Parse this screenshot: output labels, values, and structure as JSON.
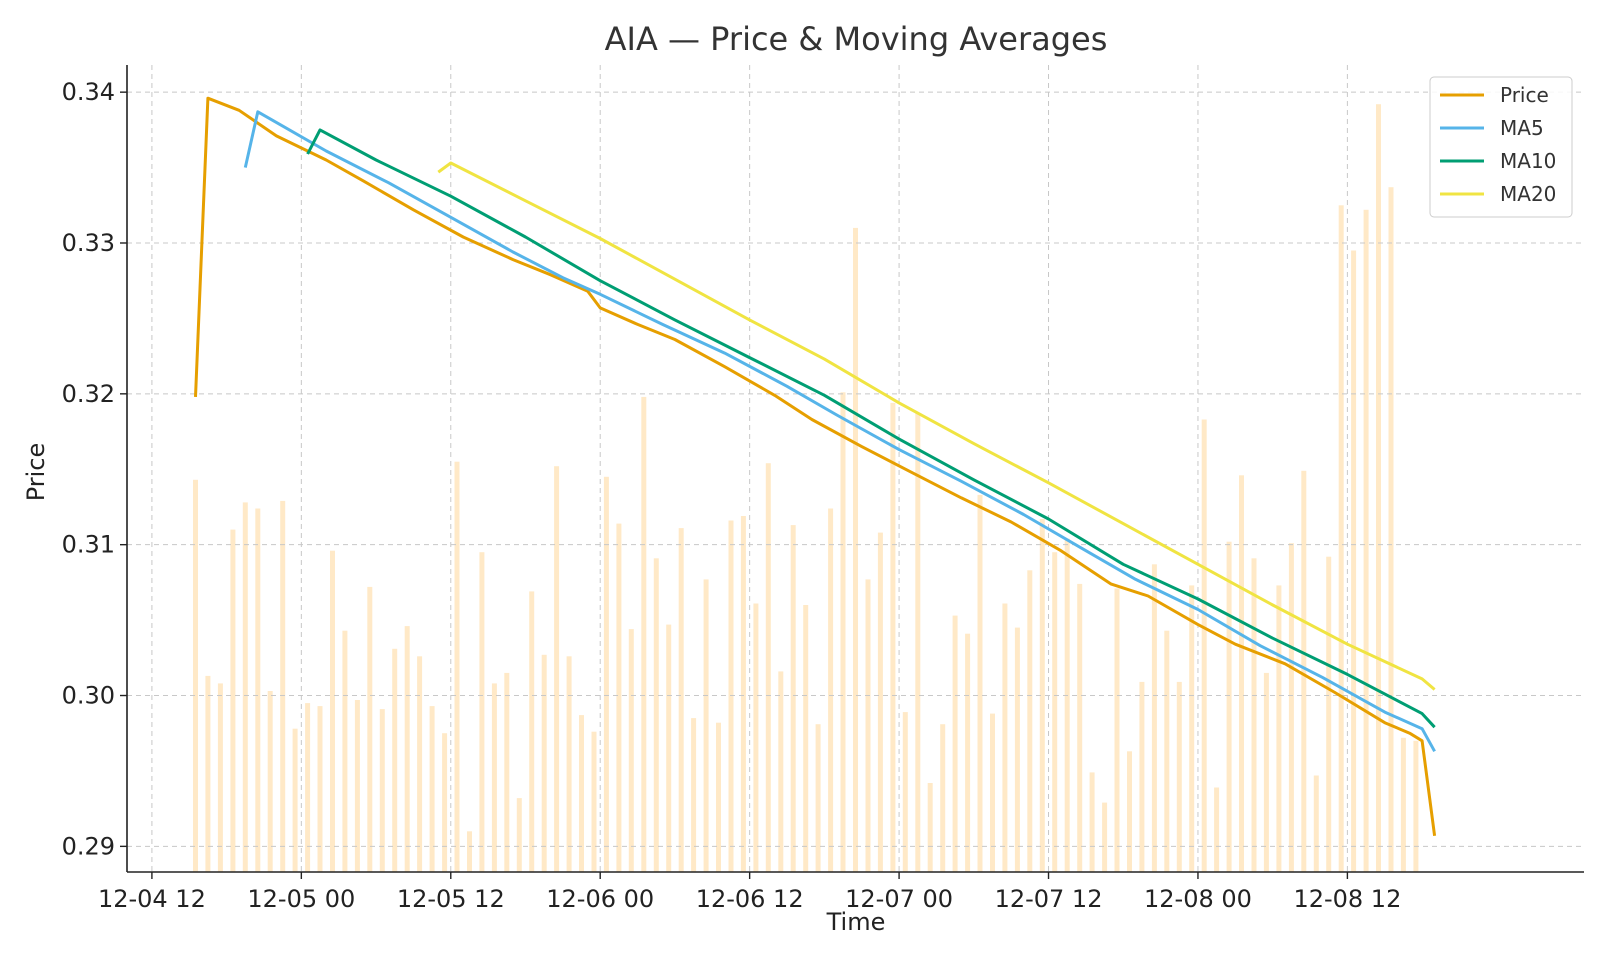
{
  "chart_data": {
    "type": "line",
    "title": "AIA — Price & Moving Averages",
    "xlabel": "Time",
    "ylabel": "Price",
    "ylim": [
      0.2883,
      0.3418
    ],
    "x_range": [
      "2024-12-04 10:00",
      "2024-12-09 07:00"
    ],
    "x_ticks": [
      {
        "t": "2024-12-04 12:00",
        "label": "12-04 12"
      },
      {
        "t": "2024-12-05 00:00",
        "label": "12-05 00"
      },
      {
        "t": "2024-12-05 12:00",
        "label": "12-05 12"
      },
      {
        "t": "2024-12-06 00:00",
        "label": "12-06 00"
      },
      {
        "t": "2024-12-06 12:00",
        "label": "12-06 12"
      },
      {
        "t": "2024-12-07 00:00",
        "label": "12-07 00"
      },
      {
        "t": "2024-12-07 12:00",
        "label": "12-07 12"
      },
      {
        "t": "2024-12-08 00:00",
        "label": "12-08 00"
      },
      {
        "t": "2024-12-08 12:00",
        "label": "12-08 12"
      }
    ],
    "y_ticks": [
      {
        "v": 0.29,
        "label": "0.29"
      },
      {
        "v": 0.3,
        "label": "0.30"
      },
      {
        "v": 0.31,
        "label": "0.31"
      },
      {
        "v": 0.32,
        "label": "0.32"
      },
      {
        "v": 0.33,
        "label": "0.33"
      },
      {
        "v": 0.34,
        "label": "0.34"
      }
    ],
    "grid": true,
    "legend_position": "top-right",
    "series": [
      {
        "name": "Price",
        "color": "#E69F00",
        "points": [
          [
            "2024-12-04 15:30",
            0.3198
          ],
          [
            "2024-12-04 16:30",
            0.3396
          ],
          [
            "2024-12-04 19:00",
            0.3388
          ],
          [
            "2024-12-04 22:00",
            0.3371
          ],
          [
            "2024-12-05 02:00",
            0.3355
          ],
          [
            "2024-12-05 05:00",
            0.3341
          ],
          [
            "2024-12-05 09:00",
            0.3322
          ],
          [
            "2024-12-05 13:00",
            0.3304
          ],
          [
            "2024-12-05 17:00",
            0.3289
          ],
          [
            "2024-12-05 20:00",
            0.3279
          ],
          [
            "2024-12-05 23:00",
            0.3268
          ],
          [
            "2024-12-06 00:00",
            0.3257
          ],
          [
            "2024-12-06 03:00",
            0.3246
          ],
          [
            "2024-12-06 06:00",
            0.3236
          ],
          [
            "2024-12-06 10:00",
            0.3218
          ],
          [
            "2024-12-06 14:00",
            0.3199
          ],
          [
            "2024-12-06 17:00",
            0.3183
          ],
          [
            "2024-12-06 21:00",
            0.3165
          ],
          [
            "2024-12-07 01:00",
            0.3148
          ],
          [
            "2024-12-07 05:00",
            0.3131
          ],
          [
            "2024-12-07 09:00",
            0.3115
          ],
          [
            "2024-12-07 13:00",
            0.3096
          ],
          [
            "2024-12-07 17:00",
            0.3074
          ],
          [
            "2024-12-07 20:00",
            0.3066
          ],
          [
            "2024-12-08 00:00",
            0.3047
          ],
          [
            "2024-12-08 03:00",
            0.3034
          ],
          [
            "2024-12-08 07:00",
            0.3021
          ],
          [
            "2024-12-08 11:00",
            0.3002
          ],
          [
            "2024-12-08 15:00",
            0.2982
          ],
          [
            "2024-12-08 17:00",
            0.2975
          ],
          [
            "2024-12-08 18:00",
            0.297
          ],
          [
            "2024-12-08 19:00",
            0.2907
          ]
        ]
      },
      {
        "name": "MA5",
        "color": "#56B4E9",
        "points": [
          [
            "2024-12-04 19:30",
            0.335
          ],
          [
            "2024-12-04 20:30",
            0.3387
          ],
          [
            "2024-12-05 02:00",
            0.3361
          ],
          [
            "2024-12-05 07:00",
            0.334
          ],
          [
            "2024-12-05 12:00",
            0.3317
          ],
          [
            "2024-12-05 17:00",
            0.3294
          ],
          [
            "2024-12-05 21:00",
            0.3277
          ],
          [
            "2024-12-06 00:00",
            0.3266
          ],
          [
            "2024-12-06 05:00",
            0.3246
          ],
          [
            "2024-12-06 10:00",
            0.3227
          ],
          [
            "2024-12-06 15:00",
            0.3205
          ],
          [
            "2024-12-06 19:00",
            0.3186
          ],
          [
            "2024-12-07 00:00",
            0.3163
          ],
          [
            "2024-12-07 05:00",
            0.3142
          ],
          [
            "2024-12-07 10:00",
            0.312
          ],
          [
            "2024-12-07 15:00",
            0.3096
          ],
          [
            "2024-12-07 19:00",
            0.3077
          ],
          [
            "2024-12-08 00:00",
            0.3057
          ],
          [
            "2024-12-08 05:00",
            0.3033
          ],
          [
            "2024-12-08 10:00",
            0.3012
          ],
          [
            "2024-12-08 15:00",
            0.2989
          ],
          [
            "2024-12-08 18:00",
            0.2978
          ],
          [
            "2024-12-08 19:00",
            0.2963
          ]
        ]
      },
      {
        "name": "MA10",
        "color": "#009E73",
        "points": [
          [
            "2024-12-05 00:30",
            0.3359
          ],
          [
            "2024-12-05 01:30",
            0.3375
          ],
          [
            "2024-12-05 06:00",
            0.3355
          ],
          [
            "2024-12-05 12:00",
            0.3331
          ],
          [
            "2024-12-05 18:00",
            0.3304
          ],
          [
            "2024-12-06 00:00",
            0.3275
          ],
          [
            "2024-12-06 06:00",
            0.3249
          ],
          [
            "2024-12-06 12:00",
            0.3224
          ],
          [
            "2024-12-06 18:00",
            0.3199
          ],
          [
            "2024-12-07 00:00",
            0.317
          ],
          [
            "2024-12-07 06:00",
            0.3143
          ],
          [
            "2024-12-07 12:00",
            0.3117
          ],
          [
            "2024-12-07 18:00",
            0.3087
          ],
          [
            "2024-12-08 00:00",
            0.3064
          ],
          [
            "2024-12-08 06:00",
            0.3038
          ],
          [
            "2024-12-08 12:00",
            0.3014
          ],
          [
            "2024-12-08 18:00",
            0.2988
          ],
          [
            "2024-12-08 19:00",
            0.2979
          ]
        ]
      },
      {
        "name": "MA20",
        "color": "#F0E442",
        "points": [
          [
            "2024-12-05 11:00",
            0.3347
          ],
          [
            "2024-12-05 12:00",
            0.3353
          ],
          [
            "2024-12-05 18:00",
            0.3328
          ],
          [
            "2024-12-06 00:00",
            0.3303
          ],
          [
            "2024-12-06 06:00",
            0.3276
          ],
          [
            "2024-12-06 12:00",
            0.3249
          ],
          [
            "2024-12-06 18:00",
            0.3223
          ],
          [
            "2024-12-07 00:00",
            0.3194
          ],
          [
            "2024-12-07 06:00",
            0.3167
          ],
          [
            "2024-12-07 12:00",
            0.3141
          ],
          [
            "2024-12-07 18:00",
            0.3114
          ],
          [
            "2024-12-08 00:00",
            0.3087
          ],
          [
            "2024-12-08 06:00",
            0.306
          ],
          [
            "2024-12-08 12:00",
            0.3034
          ],
          [
            "2024-12-08 18:00",
            0.3011
          ],
          [
            "2024-12-08 19:00",
            0.3004
          ]
        ]
      }
    ],
    "volume_bars": {
      "color": "#FFE9C7",
      "start": "2024-12-04 15:30",
      "step_hours": 1,
      "tops": [
        0.3143,
        0.3013,
        0.3008,
        0.311,
        0.3128,
        0.3124,
        0.3003,
        0.3129,
        0.2978,
        0.2995,
        0.2993,
        0.3096,
        0.3043,
        0.2997,
        0.3072,
        0.2991,
        0.3031,
        0.3046,
        0.3026,
        0.2993,
        0.2975,
        0.3155,
        0.291,
        0.3095,
        0.3008,
        0.3015,
        0.2932,
        0.3069,
        0.3027,
        0.3152,
        0.3026,
        0.2987,
        0.2976,
        0.3145,
        0.3114,
        0.3044,
        0.3198,
        0.3091,
        0.3047,
        0.3111,
        0.2985,
        0.3077,
        0.2982,
        0.3116,
        0.3119,
        0.3061,
        0.3154,
        0.3016,
        0.3113,
        0.306,
        0.2981,
        0.3124,
        0.3201,
        0.331,
        0.3077,
        0.3108,
        0.3194,
        0.2989,
        0.3187,
        0.2942,
        0.2981,
        0.3053,
        0.3041,
        0.3133,
        0.2988,
        0.3061,
        0.3045,
        0.3083,
        0.3117,
        0.3095,
        0.3104,
        0.3074,
        0.2949,
        0.2929,
        0.3071,
        0.2963,
        0.3009,
        0.3087,
        0.3043,
        0.3009,
        0.3073,
        0.3183,
        0.2939,
        0.3102,
        0.3146,
        0.3091,
        0.3015,
        0.3073,
        0.3101,
        0.3149,
        0.2947,
        0.3092,
        0.3325,
        0.3295,
        0.3322,
        0.3392,
        0.3337,
        0.2972,
        0.297
      ]
    }
  }
}
